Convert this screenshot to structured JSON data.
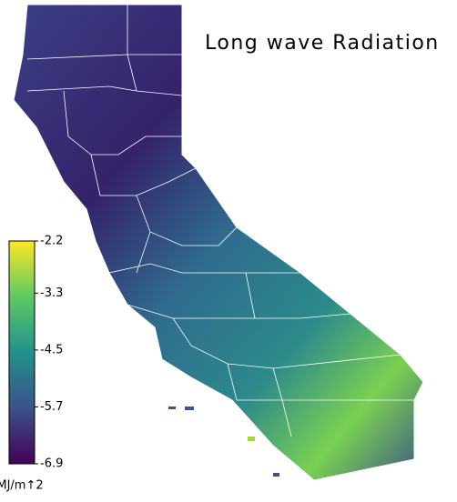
{
  "title": "Long wave Radiation",
  "colorbar": {
    "lim": [
      -6.9,
      -2.2
    ],
    "ticks": [
      -2.2,
      -3.3,
      -4.5,
      -5.7,
      -6.9
    ],
    "unit": "MJ/m↑2",
    "colors": [
      "#440154",
      "#3b528b",
      "#21918c",
      "#5ec962",
      "#fde725"
    ]
  }
}
